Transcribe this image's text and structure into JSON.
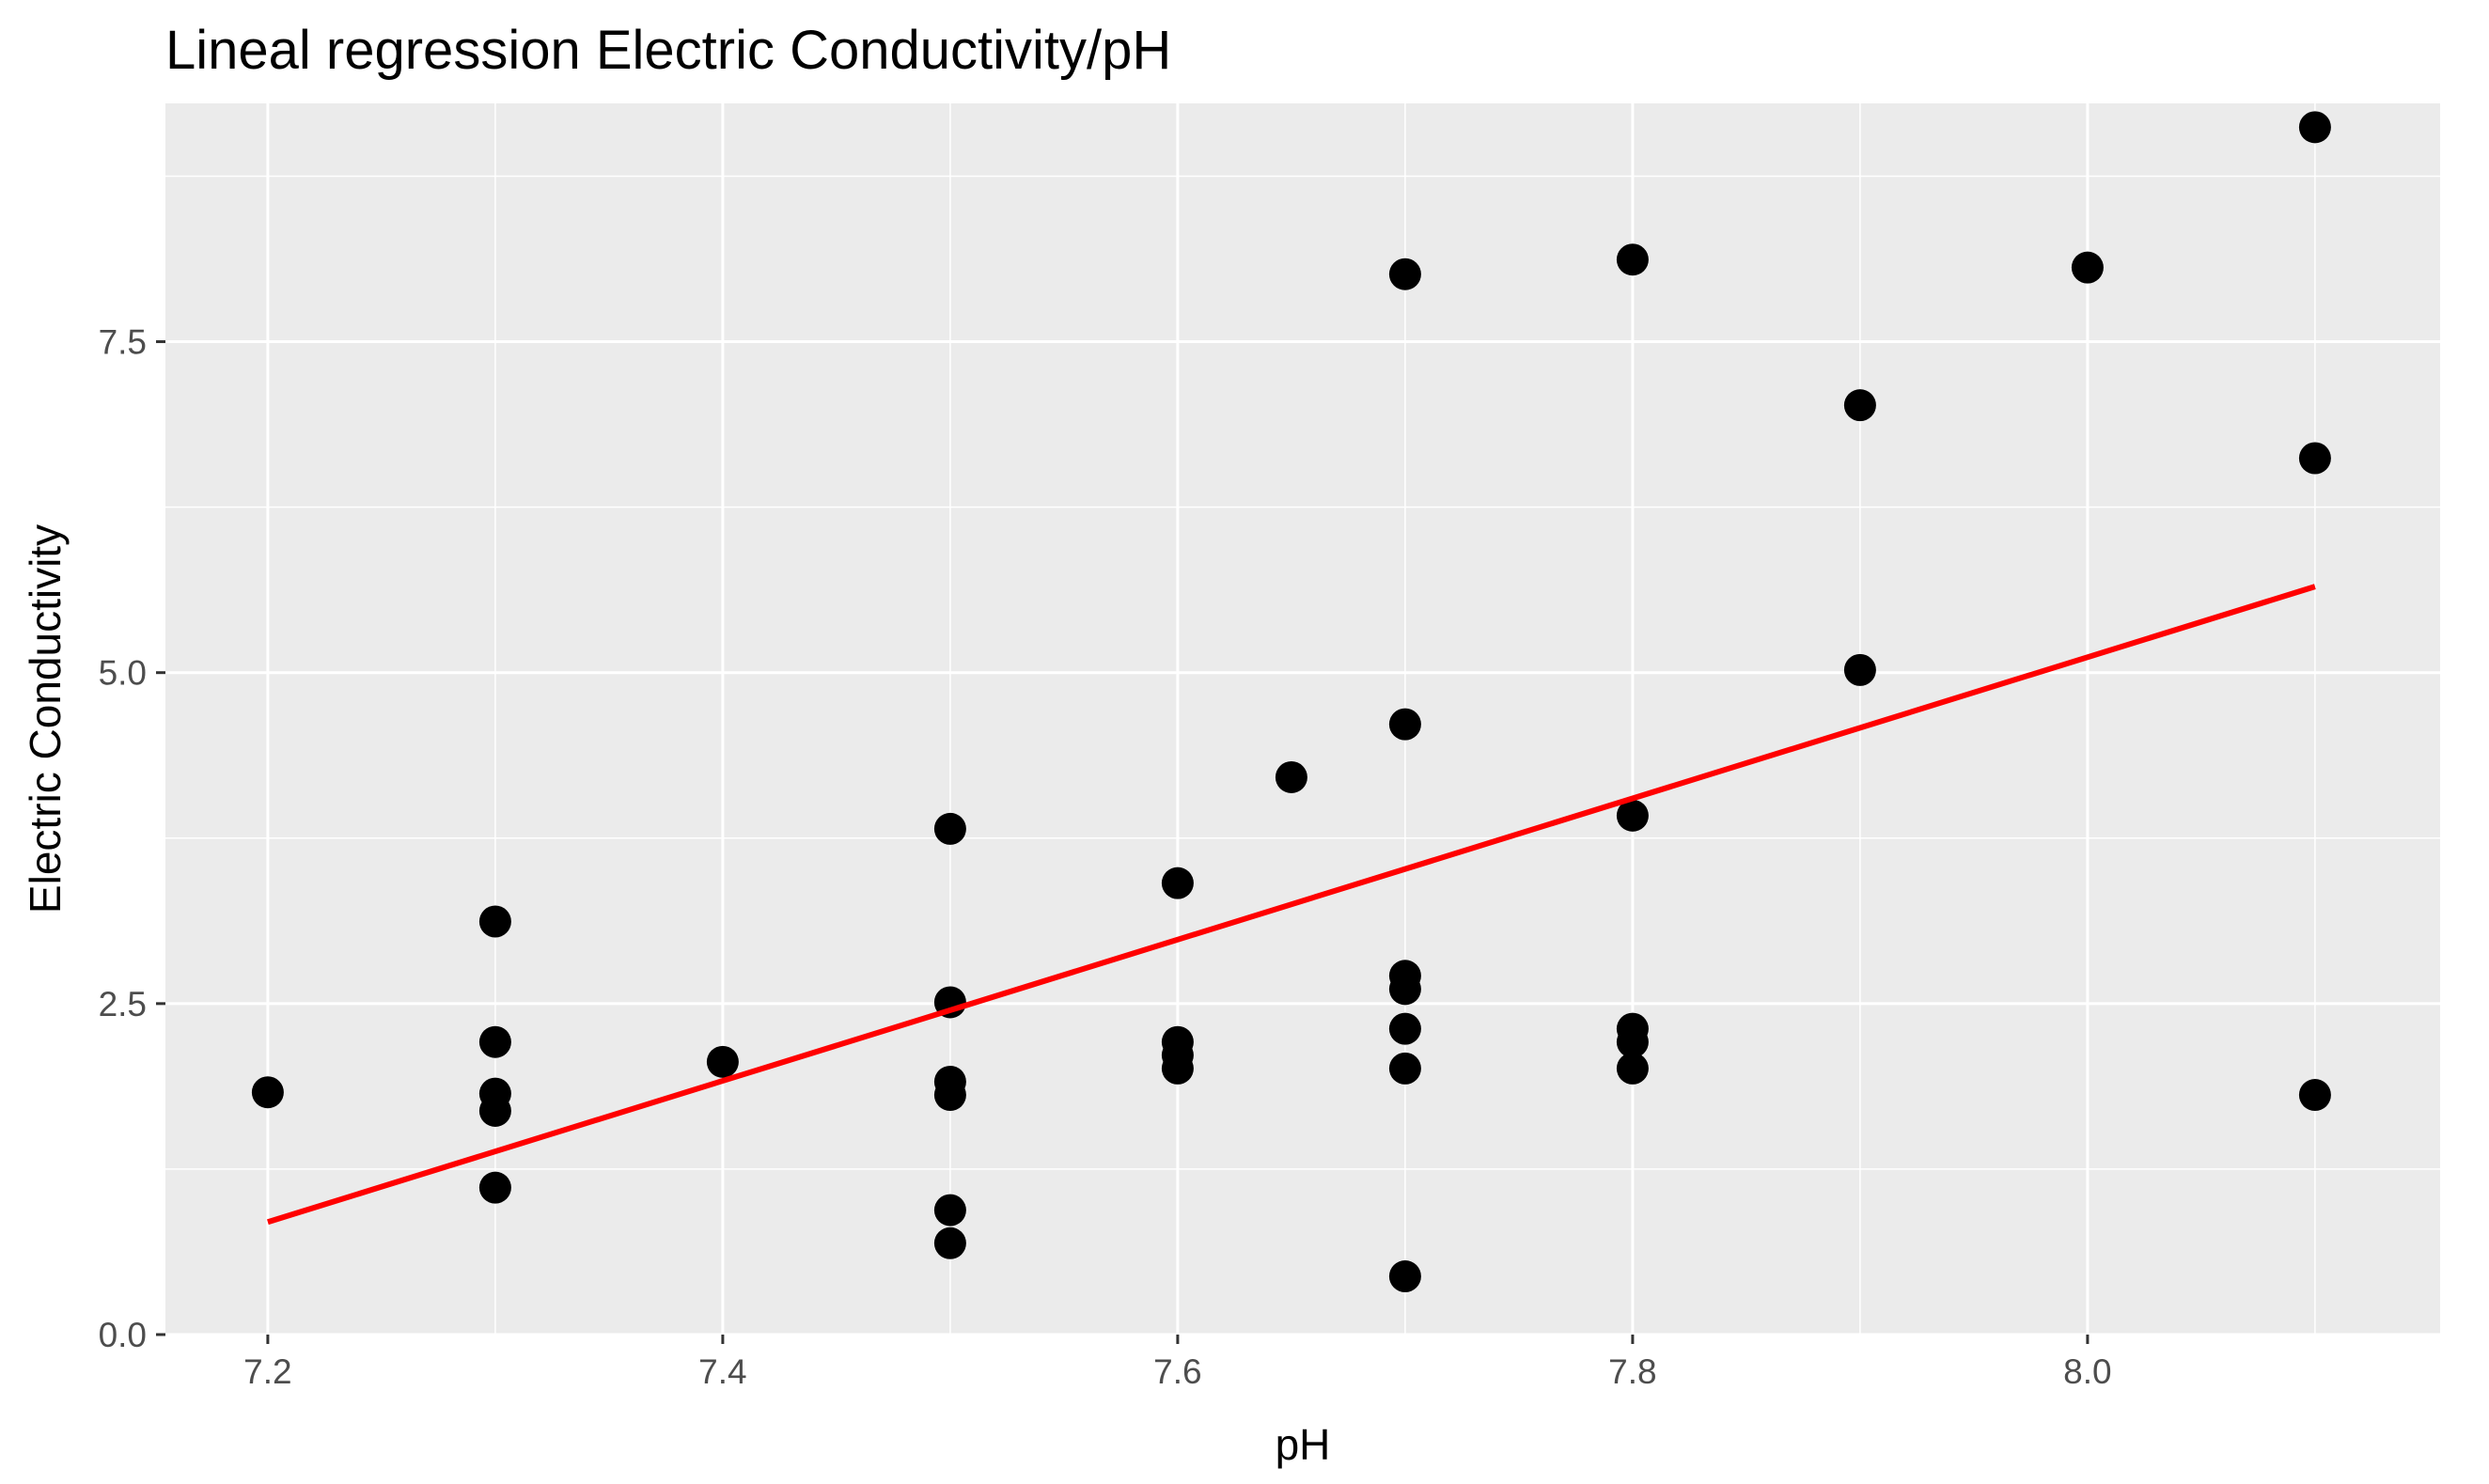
{
  "chart_data": {
    "type": "scatter",
    "title": "Lineal regression Electric Conductivity/pH",
    "xlabel": "pH",
    "ylabel": "Electric Conductivity",
    "xlim": [
      7.155,
      8.155
    ],
    "ylim": [
      0.0,
      9.3
    ],
    "x_ticks": [
      7.2,
      7.4,
      7.6,
      7.8,
      8.0
    ],
    "x_tick_labels": [
      "7.2",
      "7.4",
      "7.6",
      "7.8",
      "8.0"
    ],
    "y_ticks": [
      0.0,
      2.5,
      5.0,
      7.5
    ],
    "y_tick_labels": [
      "0.0",
      "2.5",
      "5.0",
      "7.5"
    ],
    "grid": true,
    "colors": {
      "panel_background": "#ebebeb",
      "grid": "#ffffff",
      "points": "#000000",
      "regression_line": "#ff0000"
    },
    "series": [
      {
        "kind": "points",
        "points": [
          {
            "x": 7.2,
            "y": 1.83
          },
          {
            "x": 7.3,
            "y": 3.12
          },
          {
            "x": 7.3,
            "y": 2.21
          },
          {
            "x": 7.3,
            "y": 1.82
          },
          {
            "x": 7.3,
            "y": 1.69
          },
          {
            "x": 7.3,
            "y": 1.11
          },
          {
            "x": 7.4,
            "y": 2.06
          },
          {
            "x": 7.5,
            "y": 3.82
          },
          {
            "x": 7.5,
            "y": 2.51
          },
          {
            "x": 7.5,
            "y": 1.91
          },
          {
            "x": 7.5,
            "y": 1.81
          },
          {
            "x": 7.5,
            "y": 0.94
          },
          {
            "x": 7.5,
            "y": 0.69
          },
          {
            "x": 7.6,
            "y": 3.41
          },
          {
            "x": 7.6,
            "y": 2.21
          },
          {
            "x": 7.6,
            "y": 2.11
          },
          {
            "x": 7.6,
            "y": 2.01
          },
          {
            "x": 7.65,
            "y": 4.21
          },
          {
            "x": 7.7,
            "y": 8.01
          },
          {
            "x": 7.7,
            "y": 4.61
          },
          {
            "x": 7.7,
            "y": 2.71
          },
          {
            "x": 7.7,
            "y": 2.61
          },
          {
            "x": 7.7,
            "y": 2.31
          },
          {
            "x": 7.7,
            "y": 2.01
          },
          {
            "x": 7.7,
            "y": 0.44
          },
          {
            "x": 7.8,
            "y": 8.12
          },
          {
            "x": 7.8,
            "y": 3.92
          },
          {
            "x": 7.8,
            "y": 2.31
          },
          {
            "x": 7.8,
            "y": 2.21
          },
          {
            "x": 7.8,
            "y": 2.01
          },
          {
            "x": 7.9,
            "y": 7.02
          },
          {
            "x": 7.9,
            "y": 5.02
          },
          {
            "x": 8.0,
            "y": 8.06
          },
          {
            "x": 8.1,
            "y": 9.12
          },
          {
            "x": 8.1,
            "y": 6.62
          },
          {
            "x": 8.1,
            "y": 1.81
          }
        ]
      },
      {
        "kind": "regression_line",
        "x": [
          7.2,
          8.1
        ],
        "y": [
          0.85,
          5.65
        ]
      }
    ]
  }
}
